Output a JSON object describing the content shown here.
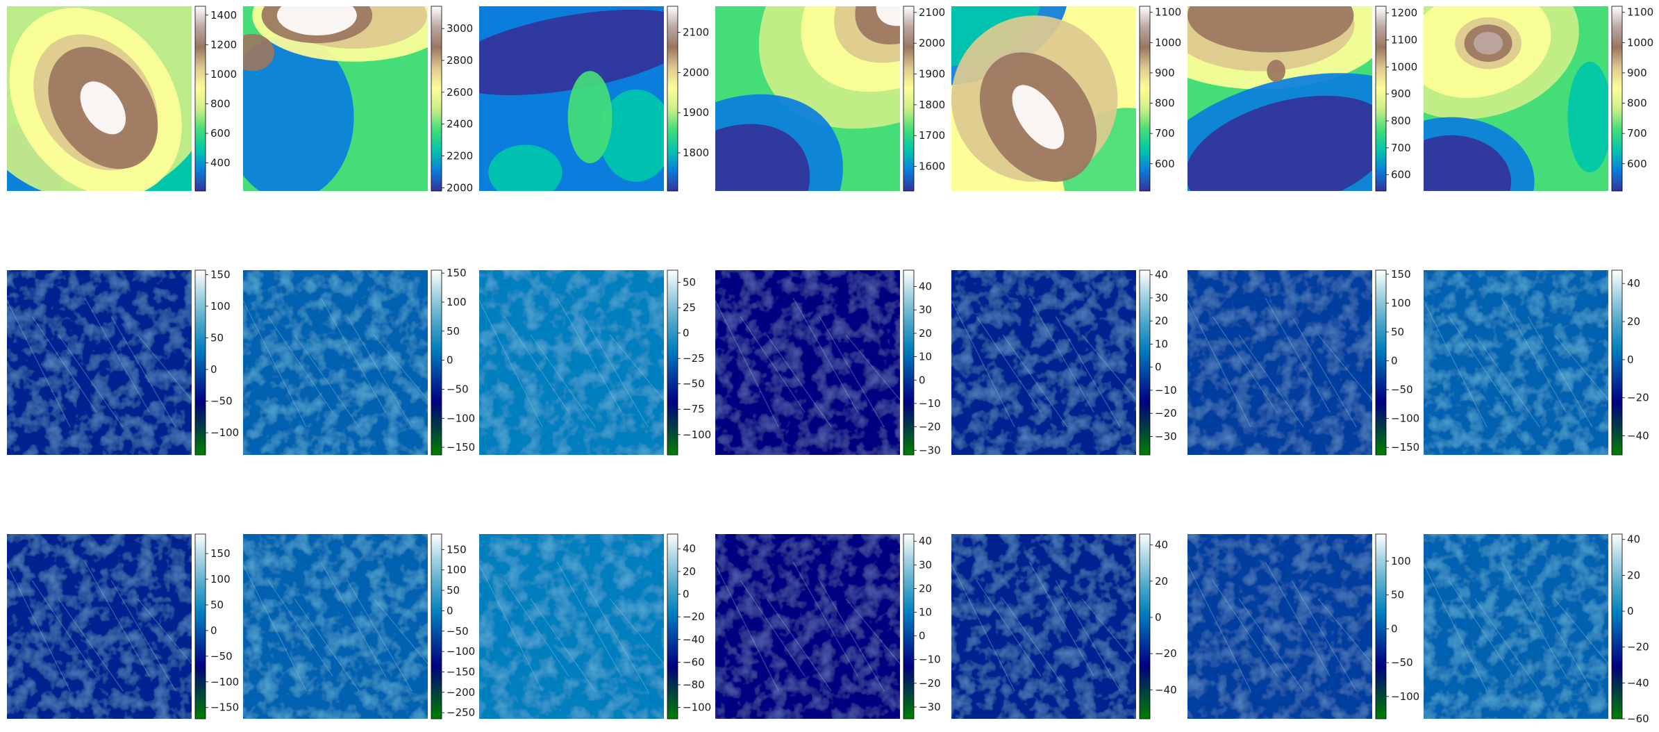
{
  "figure": {
    "rows": 3,
    "cols": 7,
    "row_kinds": [
      "elevation",
      "derivative-x",
      "derivative-y"
    ]
  },
  "colormaps": {
    "terrain": [
      "#333399",
      "#0b7ddd",
      "#00c6aa",
      "#44dd77",
      "#ccee88",
      "#fefe98",
      "#ddc98f",
      "#9a7660",
      "#bba8a3",
      "#ffffff"
    ],
    "ocean": [
      "#008000",
      "#004040",
      "#000080",
      "#003f9f",
      "#007fbf",
      "#4aa6c8",
      "#a0d0e0",
      "#ffffff"
    ]
  },
  "chart_data": [
    {
      "type": "heatmap",
      "row": 0,
      "col": 0,
      "colormap": "terrain",
      "zlim": [
        210,
        1460
      ],
      "colorbar_ticks": [
        400,
        600,
        800,
        1000,
        1200,
        1400
      ]
    },
    {
      "type": "heatmap",
      "row": 0,
      "col": 1,
      "colormap": "terrain",
      "zlim": [
        1980,
        3140
      ],
      "colorbar_ticks": [
        2000,
        2200,
        2400,
        2600,
        2800,
        3000
      ]
    },
    {
      "type": "heatmap",
      "row": 0,
      "col": 2,
      "colormap": "terrain",
      "zlim": [
        1705,
        2165
      ],
      "colorbar_ticks": [
        1800,
        1900,
        2000,
        2100
      ]
    },
    {
      "type": "heatmap",
      "row": 0,
      "col": 3,
      "colormap": "terrain",
      "zlim": [
        1520,
        2120
      ],
      "colorbar_ticks": [
        1600,
        1700,
        1800,
        1900,
        2000,
        2100
      ]
    },
    {
      "type": "heatmap",
      "row": 0,
      "col": 4,
      "colormap": "terrain",
      "zlim": [
        510,
        1120
      ],
      "colorbar_ticks": [
        600,
        700,
        800,
        900,
        1000,
        1100
      ]
    },
    {
      "type": "heatmap",
      "row": 0,
      "col": 5,
      "colormap": "terrain",
      "zlim": [
        540,
        1225
      ],
      "colorbar_ticks": [
        600,
        700,
        800,
        900,
        1000,
        1100,
        1200
      ]
    },
    {
      "type": "heatmap",
      "row": 0,
      "col": 6,
      "colormap": "terrain",
      "zlim": [
        510,
        1120
      ],
      "colorbar_ticks": [
        600,
        700,
        800,
        900,
        1000,
        1100
      ]
    },
    {
      "type": "heatmap",
      "row": 1,
      "col": 0,
      "colormap": "ocean",
      "zlim": [
        -135,
        157
      ],
      "colorbar_ticks": [
        -100,
        -50,
        0,
        50,
        100,
        150
      ]
    },
    {
      "type": "heatmap",
      "row": 1,
      "col": 1,
      "colormap": "ocean",
      "zlim": [
        -163,
        155
      ],
      "colorbar_ticks": [
        -150,
        -100,
        -50,
        0,
        50,
        100,
        150
      ]
    },
    {
      "type": "heatmap",
      "row": 1,
      "col": 2,
      "colormap": "ocean",
      "zlim": [
        -120,
        62
      ],
      "colorbar_ticks": [
        -100,
        -75,
        -50,
        -25,
        0,
        25,
        50
      ]
    },
    {
      "type": "heatmap",
      "row": 1,
      "col": 3,
      "colormap": "ocean",
      "zlim": [
        -32,
        47
      ],
      "colorbar_ticks": [
        -30,
        -20,
        -10,
        0,
        10,
        20,
        30,
        40
      ]
    },
    {
      "type": "heatmap",
      "row": 1,
      "col": 4,
      "colormap": "ocean",
      "zlim": [
        -38,
        42
      ],
      "colorbar_ticks": [
        -30,
        -20,
        -10,
        0,
        10,
        20,
        30,
        40
      ]
    },
    {
      "type": "heatmap",
      "row": 1,
      "col": 5,
      "colormap": "ocean",
      "zlim": [
        -163,
        157
      ],
      "colorbar_ticks": [
        -150,
        -100,
        -50,
        0,
        50,
        100,
        150
      ]
    },
    {
      "type": "heatmap",
      "row": 1,
      "col": 6,
      "colormap": "ocean",
      "zlim": [
        -50,
        47
      ],
      "colorbar_ticks": [
        -40,
        -20,
        0,
        20,
        40
      ]
    },
    {
      "type": "heatmap",
      "row": 2,
      "col": 0,
      "colormap": "ocean",
      "zlim": [
        -172,
        188
      ],
      "colorbar_ticks": [
        -150,
        -100,
        -50,
        0,
        50,
        100,
        150
      ]
    },
    {
      "type": "heatmap",
      "row": 2,
      "col": 1,
      "colormap": "ocean",
      "zlim": [
        -265,
        188
      ],
      "colorbar_ticks": [
        -250,
        -200,
        -150,
        -100,
        -50,
        0,
        50,
        100,
        150
      ]
    },
    {
      "type": "heatmap",
      "row": 2,
      "col": 2,
      "colormap": "ocean",
      "zlim": [
        -110,
        53
      ],
      "colorbar_ticks": [
        -100,
        -80,
        -60,
        -40,
        -20,
        0,
        20,
        40
      ]
    },
    {
      "type": "heatmap",
      "row": 2,
      "col": 3,
      "colormap": "ocean",
      "zlim": [
        -35,
        43
      ],
      "colorbar_ticks": [
        -30,
        -20,
        -10,
        0,
        10,
        20,
        30,
        40
      ]
    },
    {
      "type": "heatmap",
      "row": 2,
      "col": 4,
      "colormap": "ocean",
      "zlim": [
        -56,
        46
      ],
      "colorbar_ticks": [
        -40,
        -20,
        0,
        20,
        40
      ]
    },
    {
      "type": "heatmap",
      "row": 2,
      "col": 5,
      "colormap": "ocean",
      "zlim": [
        -133,
        140
      ],
      "colorbar_ticks": [
        -100,
        -50,
        0,
        50,
        100
      ]
    },
    {
      "type": "heatmap",
      "row": 2,
      "col": 6,
      "colormap": "ocean",
      "zlim": [
        -60,
        43
      ],
      "colorbar_ticks": [
        -60,
        -40,
        -20,
        0,
        20,
        40
      ]
    }
  ]
}
